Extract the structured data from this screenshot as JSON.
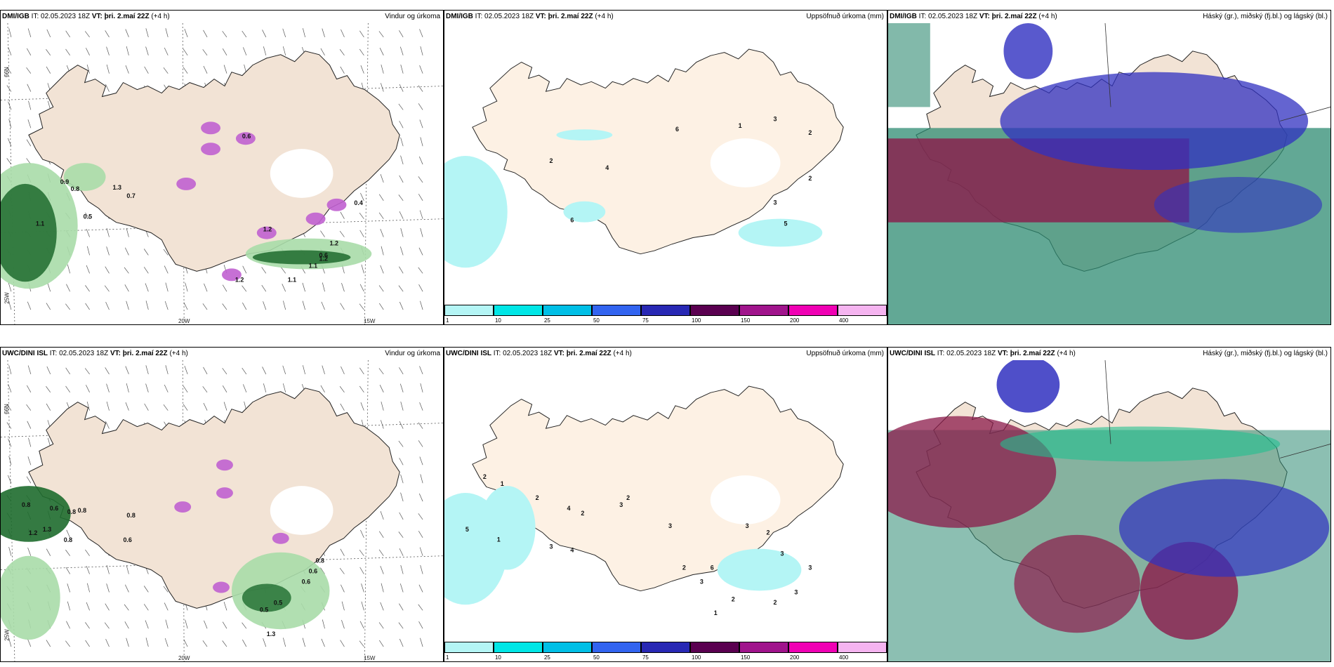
{
  "panels": [
    {
      "source": "DMI/IGB",
      "it": "IT: 02.05.2023 18Z",
      "vt_label": "VT:",
      "vt": "þri. 2.maí 22Z",
      "lead": "(+4 h)",
      "title": "Vindur og úrkoma"
    },
    {
      "source": "DMI/IGB",
      "it": "IT: 02.05.2023 18Z",
      "vt_label": "VT:",
      "vt": "þri. 2.maí 22Z",
      "lead": "(+4 h)",
      "title": "Uppsöfnuð úrkoma (mm)"
    },
    {
      "source": "DMI/IGB",
      "it": "IT: 02.05.2023 18Z",
      "vt_label": "VT:",
      "vt": "þri. 2.maí 22Z",
      "lead": "(+4 h)",
      "title": "Háský (gr.), miðský (fj.bl.) og lágský (bl.)"
    },
    {
      "source": "UWC/DINI ISL",
      "it": "IT: 02.05.2023 18Z",
      "vt_label": "VT:",
      "vt": "þri. 2.maí 22Z",
      "lead": "(+4 h)",
      "title": "Vindur og úrkoma"
    },
    {
      "source": "UWC/DINI ISL",
      "it": "IT: 02.05.2023 18Z",
      "vt_label": "VT:",
      "vt": "þri. 2.maí 22Z",
      "lead": "(+4 h)",
      "title": "Uppsöfnuð úrkoma (mm)"
    },
    {
      "source": "UWC/DINI ISL",
      "it": "IT: 02.05.2023 18Z",
      "vt_label": "VT:",
      "vt": "þri. 2.maí 22Z",
      "lead": "(+4 h)",
      "title": "Háský (gr.), miðský (fj.bl.) og lágský (bl.)"
    }
  ],
  "axis_labels": {
    "lat_66": "66N",
    "lon_25": "25W",
    "lon_20": "20W",
    "lon_15": "15W"
  },
  "colorbar": {
    "labels": [
      "1",
      "10",
      "25",
      "50",
      "75",
      "100",
      "150",
      "200",
      "400"
    ],
    "colors": [
      "#b4f5f5",
      "#00e6e6",
      "#00bfe6",
      "#3264f0",
      "#2828b4",
      "#5a0050",
      "#a0148c",
      "#f000b4",
      "#f5b4f0"
    ]
  },
  "precip_labels_top": [
    "6",
    "1",
    "3",
    "2",
    "2",
    "4",
    "6",
    "2",
    "3",
    "5"
  ],
  "precip_labels_bottom": [
    "2",
    "1",
    "2",
    "4",
    "2",
    "2",
    "5",
    "1",
    "3",
    "4",
    "3",
    "3",
    "2",
    "6",
    "3",
    "3",
    "2",
    "3",
    "3",
    "3",
    "2",
    "2",
    "1"
  ],
  "wind_labels_top": [
    "0.6",
    "0.9",
    "0.8",
    "1.3",
    "0.7",
    "0.5",
    "1.1",
    "1.2",
    "1.2",
    "1.2",
    "1.1",
    "1.1",
    "0.6",
    "0.4",
    "1.2"
  ],
  "wind_labels_bottom": [
    "0.8",
    "0.6",
    "0.8",
    "0.8",
    "0.8",
    "1.3",
    "1.2",
    "0.8",
    "0.6",
    "0.8",
    "0.6",
    "0.6",
    "0.5",
    "0.5",
    "1.3"
  ],
  "colors": {
    "land": "#f2e3d5",
    "land_light": "#fdf1e4",
    "precip_fill": "#b4f5f5",
    "green_dark": "#1e6b2e",
    "green_light": "#a8dca8",
    "magenta": "#c060d0",
    "cloud_high": "#2e8b72",
    "cloud_mid": "#8b1a4a",
    "cloud_low": "#3030c0"
  }
}
